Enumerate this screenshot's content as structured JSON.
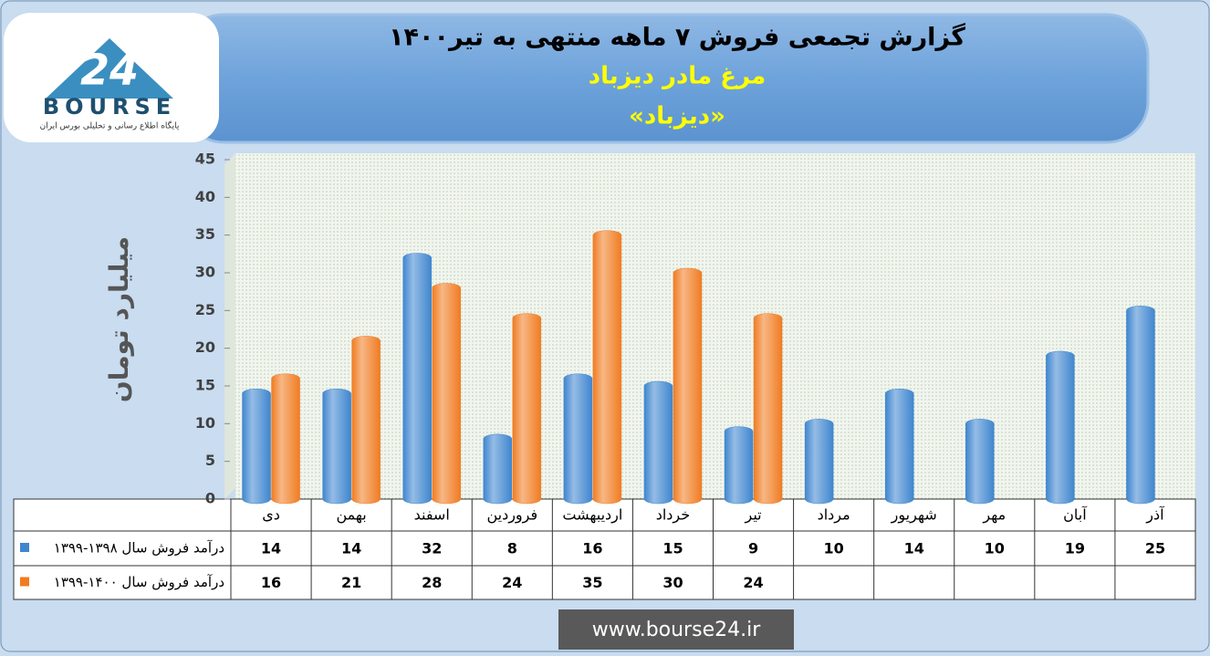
{
  "chart_data": {
    "type": "bar",
    "title": "گزارش تجمعی فروش ۷ ماهه منتهی به تیر۱۴۰۰",
    "subtitle": [
      "مرغ مادر دیزباد",
      "«دیزباد»"
    ],
    "ylabel": "میلیارد تومان",
    "categories": [
      "دی",
      "بهمن",
      "اسفند",
      "فروردین",
      "اردیبهشت",
      "خرداد",
      "تیر",
      "مرداد",
      "شهریور",
      "مهر",
      "آبان",
      "آذر"
    ],
    "series": [
      {
        "name": "درآمد فروش سال ۱۳۹۸-۱۳۹۹",
        "color": "#3f86cf",
        "values": [
          14,
          14,
          32,
          8,
          16,
          15,
          9,
          10,
          14,
          10,
          19,
          25
        ]
      },
      {
        "name": "درآمد فروش سال ۱۴۰۰-۱۳۹۹",
        "color": "#f07c22",
        "values": [
          16,
          21,
          28,
          24,
          35,
          30,
          24,
          null,
          null,
          null,
          null,
          null
        ]
      }
    ],
    "ylim": [
      0,
      45
    ],
    "yticks": [
      0,
      5,
      10,
      15,
      20,
      25,
      30,
      35,
      40,
      45
    ],
    "source": "www.bourse24.ir",
    "logo": {
      "mark": "24",
      "name": "BOURSE",
      "tagline": "پایگاه اطلاع رسانی و تحلیلی بورس ایران"
    }
  }
}
